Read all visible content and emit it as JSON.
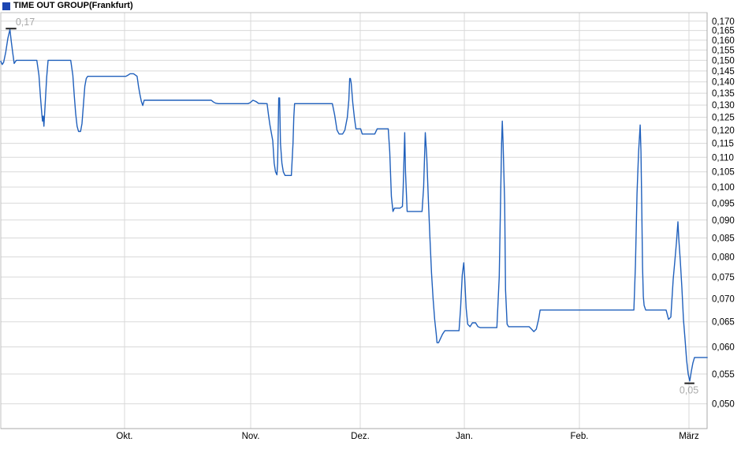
{
  "header": {
    "title": "TIME OUT GROUP",
    "exchange": "(Frankfurt)",
    "legend_color": "#1c46b2"
  },
  "chart_data": {
    "type": "line",
    "title": "TIME OUT GROUP",
    "exchange": "(Frankfurt)",
    "y_scale": "log",
    "line_color": "#2060bc",
    "grid_color": "#d9d9d9",
    "border_color": "#c0c0c0",
    "axis_color": "#a8a8a8",
    "label_color": "#000000",
    "annotation_color": "#a9a9a9",
    "marker_color": "#222222",
    "y_axis": {
      "range_top": 0.1747,
      "range_bottom": 0.0462,
      "ticks": [
        0.17,
        0.165,
        0.16,
        0.155,
        0.15,
        0.145,
        0.14,
        0.135,
        0.13,
        0.125,
        0.12,
        0.115,
        0.11,
        0.105,
        0.1,
        0.095,
        0.09,
        0.085,
        0.08,
        0.075,
        0.07,
        0.065,
        0.06,
        0.055,
        0.05
      ],
      "labels": [
        "0,170",
        "0,165",
        "0,160",
        "0,155",
        "0,150",
        "0,145",
        "0,140",
        "0,135",
        "0,130",
        "0,125",
        "0,120",
        "0,115",
        "0,110",
        "0,105",
        "0,100",
        "0,095",
        "0,090",
        "0,085",
        "0,080",
        "0,075",
        "0,070",
        "0,065",
        "0,060",
        "0,055",
        "0,050"
      ]
    },
    "x_axis": {
      "months": [
        {
          "label": "Okt.",
          "f": 0.1752
        },
        {
          "label": "Nov.",
          "f": 0.3538
        },
        {
          "label": "Dez.",
          "f": 0.5089
        },
        {
          "label": "Jan.",
          "f": 0.6563
        },
        {
          "label": "Feb.",
          "f": 0.8192
        },
        {
          "label": "März",
          "f": 0.9743
        }
      ]
    },
    "annotations": {
      "high": {
        "label": "0,17",
        "price": 0.166,
        "f0": 0.007,
        "f1": 0.022,
        "text_f": 0.021
      },
      "low": {
        "label": "0,05",
        "price": 0.0534,
        "f0": 0.968,
        "f1": 0.982,
        "text_f": 0.9744
      }
    },
    "points": [
      [
        0.0,
        0.1495
      ],
      [
        0.002,
        0.148
      ],
      [
        0.004,
        0.149
      ],
      [
        0.007,
        0.154
      ],
      [
        0.01,
        0.161
      ],
      [
        0.013,
        0.1655
      ],
      [
        0.015,
        0.159
      ],
      [
        0.017,
        0.1535
      ],
      [
        0.019,
        0.1485
      ],
      [
        0.022,
        0.15
      ],
      [
        0.051,
        0.15
      ],
      [
        0.054,
        0.143
      ],
      [
        0.056,
        0.134
      ],
      [
        0.058,
        0.1265
      ],
      [
        0.059,
        0.1235
      ],
      [
        0.06,
        0.1255
      ],
      [
        0.061,
        0.1215
      ],
      [
        0.063,
        0.131
      ],
      [
        0.065,
        0.142
      ],
      [
        0.067,
        0.15
      ],
      [
        0.099,
        0.15
      ],
      [
        0.102,
        0.143
      ],
      [
        0.104,
        0.134
      ],
      [
        0.106,
        0.1265
      ],
      [
        0.108,
        0.1215
      ],
      [
        0.11,
        0.1195
      ],
      [
        0.113,
        0.1195
      ],
      [
        0.115,
        0.1225
      ],
      [
        0.117,
        0.13
      ],
      [
        0.119,
        0.138
      ],
      [
        0.121,
        0.1415
      ],
      [
        0.123,
        0.1425
      ],
      [
        0.177,
        0.1425
      ],
      [
        0.18,
        0.143
      ],
      [
        0.183,
        0.1437
      ],
      [
        0.188,
        0.1437
      ],
      [
        0.191,
        0.143
      ],
      [
        0.193,
        0.1425
      ],
      [
        0.195,
        0.138
      ],
      [
        0.197,
        0.1345
      ],
      [
        0.199,
        0.1315
      ],
      [
        0.201,
        0.1298
      ],
      [
        0.203,
        0.132
      ],
      [
        0.206,
        0.132
      ],
      [
        0.298,
        0.132
      ],
      [
        0.301,
        0.1313
      ],
      [
        0.304,
        0.1308
      ],
      [
        0.308,
        0.1306
      ],
      [
        0.35,
        0.1306
      ],
      [
        0.353,
        0.131
      ],
      [
        0.357,
        0.132
      ],
      [
        0.361,
        0.1315
      ],
      [
        0.365,
        0.1307
      ],
      [
        0.377,
        0.1306
      ],
      [
        0.379,
        0.126
      ],
      [
        0.381,
        0.122
      ],
      [
        0.385,
        0.116
      ],
      [
        0.387,
        0.108
      ],
      [
        0.389,
        0.105
      ],
      [
        0.391,
        0.104
      ],
      [
        0.392,
        0.108
      ],
      [
        0.3935,
        0.133
      ],
      [
        0.3947,
        0.133
      ],
      [
        0.396,
        0.115
      ],
      [
        0.398,
        0.108
      ],
      [
        0.4,
        0.105
      ],
      [
        0.4025,
        0.1038
      ],
      [
        0.4114,
        0.1038
      ],
      [
        0.4137,
        0.115
      ],
      [
        0.4148,
        0.125
      ],
      [
        0.416,
        0.1306
      ],
      [
        0.4694,
        0.1306
      ],
      [
        0.4727,
        0.126
      ],
      [
        0.476,
        0.12
      ],
      [
        0.479,
        0.1185
      ],
      [
        0.4839,
        0.1185
      ],
      [
        0.4872,
        0.12
      ],
      [
        0.4906,
        0.125
      ],
      [
        0.4928,
        0.132
      ],
      [
        0.494,
        0.1415
      ],
      [
        0.495,
        0.1415
      ],
      [
        0.4961,
        0.1395
      ],
      [
        0.4983,
        0.131
      ],
      [
        0.5006,
        0.125
      ],
      [
        0.5028,
        0.1205
      ],
      [
        0.5095,
        0.1205
      ],
      [
        0.5117,
        0.1185
      ],
      [
        0.5295,
        0.1185
      ],
      [
        0.5329,
        0.1205
      ],
      [
        0.5485,
        0.1205
      ],
      [
        0.5507,
        0.112
      ],
      [
        0.553,
        0.097
      ],
      [
        0.5552,
        0.0925
      ],
      [
        0.5574,
        0.0935
      ],
      [
        0.5652,
        0.0935
      ],
      [
        0.5686,
        0.094
      ],
      [
        0.5697,
        0.1
      ],
      [
        0.5719,
        0.119
      ],
      [
        0.573,
        0.105
      ],
      [
        0.5753,
        0.0925
      ],
      [
        0.5964,
        0.0925
      ],
      [
        0.5987,
        0.1
      ],
      [
        0.601,
        0.119
      ],
      [
        0.6031,
        0.11
      ],
      [
        0.6054,
        0.096
      ],
      [
        0.6076,
        0.085
      ],
      [
        0.6098,
        0.076
      ],
      [
        0.612,
        0.07
      ],
      [
        0.6143,
        0.0655
      ],
      [
        0.6165,
        0.0625
      ],
      [
        0.6176,
        0.0608
      ],
      [
        0.6198,
        0.0608
      ],
      [
        0.6221,
        0.0615
      ],
      [
        0.6254,
        0.0625
      ],
      [
        0.6288,
        0.0632
      ],
      [
        0.6488,
        0.0632
      ],
      [
        0.651,
        0.068
      ],
      [
        0.6533,
        0.0755
      ],
      [
        0.6555,
        0.0785
      ],
      [
        0.6566,
        0.0755
      ],
      [
        0.6588,
        0.068
      ],
      [
        0.6611,
        0.0645
      ],
      [
        0.6644,
        0.064
      ],
      [
        0.6678,
        0.0648
      ],
      [
        0.6722,
        0.0648
      ],
      [
        0.6756,
        0.064
      ],
      [
        0.6789,
        0.0638
      ],
      [
        0.7023,
        0.0638
      ],
      [
        0.7057,
        0.075
      ],
      [
        0.7079,
        0.1
      ],
      [
        0.709,
        0.115
      ],
      [
        0.7101,
        0.1235
      ],
      [
        0.7112,
        0.115
      ],
      [
        0.7134,
        0.095
      ],
      [
        0.7146,
        0.072
      ],
      [
        0.7168,
        0.0645
      ],
      [
        0.719,
        0.064
      ],
      [
        0.748,
        0.064
      ],
      [
        0.7514,
        0.0635
      ],
      [
        0.7547,
        0.063
      ],
      [
        0.7581,
        0.0635
      ],
      [
        0.7614,
        0.0655
      ],
      [
        0.7636,
        0.0675
      ],
      [
        0.8963,
        0.0675
      ],
      [
        0.8986,
        0.078
      ],
      [
        0.9008,
        0.098
      ],
      [
        0.903,
        0.112
      ],
      [
        0.9053,
        0.122
      ],
      [
        0.9064,
        0.112
      ],
      [
        0.9075,
        0.094
      ],
      [
        0.9086,
        0.0775
      ],
      [
        0.9097,
        0.0705
      ],
      [
        0.9108,
        0.0685
      ],
      [
        0.9131,
        0.0675
      ],
      [
        0.942,
        0.0675
      ],
      [
        0.9454,
        0.0655
      ],
      [
        0.9487,
        0.066
      ],
      [
        0.952,
        0.0745
      ],
      [
        0.9543,
        0.079
      ],
      [
        0.9565,
        0.0835
      ],
      [
        0.9587,
        0.0895
      ],
      [
        0.9598,
        0.085
      ],
      [
        0.9621,
        0.079
      ],
      [
        0.9643,
        0.0725
      ],
      [
        0.9665,
        0.0655
      ],
      [
        0.9688,
        0.0615
      ],
      [
        0.971,
        0.0575
      ],
      [
        0.9732,
        0.055
      ],
      [
        0.9754,
        0.0538
      ],
      [
        0.9777,
        0.0555
      ],
      [
        0.9799,
        0.057
      ],
      [
        0.9821,
        0.058
      ],
      [
        1.0,
        0.058
      ]
    ]
  }
}
